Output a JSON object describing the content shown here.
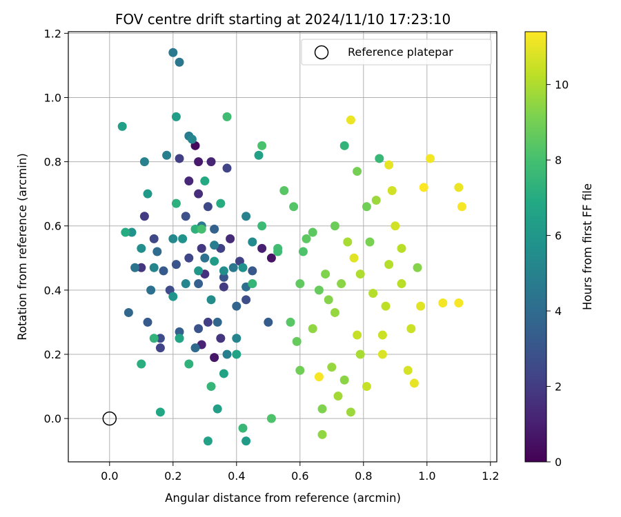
{
  "chart_data": {
    "type": "scatter",
    "title": "FOV centre drift starting at 2024/11/10 17:23:10",
    "xlabel": "Angular distance from reference (arcmin)",
    "ylabel": "Rotation from reference (arcmin)",
    "xlim": [
      -0.13,
      1.22
    ],
    "ylim": [
      -0.135,
      1.205
    ],
    "x_ticks": [
      "0.0",
      "0.2",
      "0.4",
      "0.6",
      "0.8",
      "1.0",
      "1.2"
    ],
    "y_ticks": [
      "0.0",
      "0.2",
      "0.4",
      "0.6",
      "0.8",
      "1.0",
      "1.2"
    ],
    "grid": true,
    "legend_position": "top-right",
    "legend": {
      "label": "Reference platepar"
    },
    "reference_point": {
      "x": 0.0,
      "y": 0.0
    },
    "colorbar": {
      "label": "Hours from first FF file",
      "min": 0,
      "max": 11.4,
      "ticks": [
        "0",
        "2",
        "4",
        "6",
        "8",
        "10"
      ],
      "colormap": "viridis"
    },
    "series": [
      {
        "color_value": "hours",
        "points": [
          [
            0.27,
            0.85,
            0.3
          ],
          [
            0.51,
            0.5,
            0.6
          ],
          [
            0.33,
            0.19,
            0.7
          ],
          [
            0.28,
            0.8,
            0.8
          ],
          [
            0.48,
            0.53,
            1.0
          ],
          [
            0.29,
            0.23,
            1.1
          ],
          [
            0.32,
            0.8,
            1.2
          ],
          [
            0.25,
            0.74,
            1.3
          ],
          [
            0.38,
            0.56,
            1.4
          ],
          [
            0.28,
            0.7,
            1.5
          ],
          [
            0.1,
            0.47,
            1.8
          ],
          [
            0.3,
            0.45,
            1.6
          ],
          [
            0.35,
            0.25,
            1.7
          ],
          [
            0.11,
            0.63,
            2.0
          ],
          [
            0.22,
            0.81,
            2.1
          ],
          [
            0.41,
            0.49,
            2.2
          ],
          [
            0.37,
            0.78,
            2.3
          ],
          [
            0.29,
            0.53,
            1.9
          ],
          [
            0.25,
            0.5,
            2.4
          ],
          [
            0.14,
            0.56,
            2.5
          ],
          [
            0.36,
            0.41,
            2.0
          ],
          [
            0.31,
            0.3,
            2.1
          ],
          [
            0.16,
            0.22,
            2.3
          ],
          [
            0.19,
            0.4,
            2.6
          ],
          [
            0.43,
            0.37,
            2.7
          ],
          [
            0.24,
            0.63,
            2.8
          ],
          [
            0.35,
            0.53,
            2.2
          ],
          [
            0.28,
            0.28,
            2.9
          ],
          [
            0.21,
            0.48,
            3.0
          ],
          [
            0.45,
            0.46,
            3.1
          ],
          [
            0.12,
            0.3,
            3.2
          ],
          [
            0.31,
            0.66,
            2.5
          ],
          [
            0.16,
            0.25,
            2.6
          ],
          [
            0.5,
            0.3,
            3.3
          ],
          [
            0.36,
            0.44,
            3.0
          ],
          [
            0.22,
            0.27,
            3.4
          ],
          [
            0.28,
            0.42,
            3.5
          ],
          [
            0.33,
            0.59,
            3.6
          ],
          [
            0.17,
            0.46,
            3.2
          ],
          [
            0.4,
            0.35,
            3.7
          ],
          [
            0.06,
            0.33,
            3.8
          ],
          [
            0.27,
            0.22,
            3.9
          ],
          [
            0.15,
            0.52,
            4.0
          ],
          [
            0.22,
            0.25,
            4.1
          ],
          [
            0.34,
            0.3,
            3.8
          ],
          [
            0.13,
            0.4,
            4.2
          ],
          [
            0.3,
            0.5,
            4.3
          ],
          [
            0.43,
            0.41,
            4.1
          ],
          [
            0.08,
            0.47,
            4.4
          ],
          [
            0.39,
            0.47,
            4.5
          ],
          [
            0.2,
            1.14,
            4.6
          ],
          [
            0.22,
            1.11,
            4.5
          ],
          [
            0.25,
            0.88,
            4.7
          ],
          [
            0.33,
            0.54,
            4.8
          ],
          [
            0.29,
            0.6,
            4.6
          ],
          [
            0.18,
            0.82,
            4.9
          ],
          [
            0.11,
            0.8,
            5.0
          ],
          [
            0.37,
            0.2,
            4.9
          ],
          [
            0.43,
            0.63,
            5.0
          ],
          [
            0.14,
            0.47,
            5.1
          ],
          [
            0.26,
            0.87,
            5.2
          ],
          [
            0.2,
            0.56,
            5.3
          ],
          [
            0.4,
            0.25,
            5.1
          ],
          [
            0.45,
            0.55,
            5.4
          ],
          [
            0.32,
            0.37,
            5.5
          ],
          [
            0.24,
            0.42,
            5.2
          ],
          [
            0.1,
            0.53,
            5.6
          ],
          [
            0.42,
            0.47,
            5.7
          ],
          [
            0.07,
            0.58,
            5.8
          ],
          [
            0.36,
            0.46,
            5.5
          ],
          [
            0.2,
            0.38,
            5.9
          ],
          [
            0.28,
            0.46,
            6.0
          ],
          [
            0.12,
            0.7,
            6.1
          ],
          [
            0.33,
            0.49,
            6.2
          ],
          [
            0.23,
            0.56,
            5.8
          ],
          [
            0.21,
            0.94,
            6.3
          ],
          [
            0.04,
            0.91,
            6.4
          ],
          [
            0.31,
            -0.07,
            6.5
          ],
          [
            0.43,
            -0.07,
            6.2
          ],
          [
            0.34,
            0.03,
            6.4
          ],
          [
            0.4,
            0.2,
            6.6
          ],
          [
            0.22,
            0.25,
            6.7
          ],
          [
            0.16,
            0.02,
            6.8
          ],
          [
            0.36,
            0.14,
            6.6
          ],
          [
            0.3,
            0.74,
            6.9
          ],
          [
            0.47,
            0.82,
            6.5
          ],
          [
            0.05,
            0.58,
            7.0
          ],
          [
            0.1,
            0.17,
            7.1
          ],
          [
            0.21,
            0.67,
            7.2
          ],
          [
            0.35,
            0.67,
            7.0
          ],
          [
            0.27,
            0.59,
            7.3
          ],
          [
            0.14,
            0.25,
            7.4
          ],
          [
            0.32,
            0.1,
            7.5
          ],
          [
            0.42,
            -0.03,
            7.6
          ],
          [
            0.25,
            0.17,
            7.3
          ],
          [
            0.48,
            0.6,
            7.7
          ],
          [
            0.37,
            0.94,
            7.8
          ],
          [
            0.45,
            0.42,
            7.5
          ],
          [
            0.53,
            0.53,
            7.9
          ],
          [
            0.29,
            0.59,
            8.0
          ],
          [
            0.48,
            0.85,
            8.1
          ],
          [
            0.53,
            0.52,
            7.8
          ],
          [
            0.51,
            0.0,
            8.2
          ],
          [
            0.58,
            0.66,
            8.3
          ],
          [
            0.55,
            0.71,
            8.4
          ],
          [
            0.61,
            0.52,
            8.2
          ],
          [
            0.64,
            0.58,
            8.5
          ],
          [
            0.6,
            0.42,
            8.6
          ],
          [
            0.57,
            0.3,
            8.4
          ],
          [
            0.66,
            0.4,
            8.7
          ],
          [
            0.71,
            0.6,
            8.8
          ],
          [
            0.74,
            0.85,
            7.4
          ],
          [
            0.85,
            0.81,
            7.6
          ],
          [
            0.81,
            0.66,
            8.9
          ],
          [
            0.78,
            0.77,
            9.0
          ],
          [
            0.82,
            0.55,
            9.1
          ],
          [
            0.6,
            0.15,
            8.9
          ],
          [
            0.67,
            0.03,
            9.2
          ],
          [
            0.69,
            0.37,
            9.3
          ],
          [
            0.73,
            0.42,
            9.4
          ],
          [
            0.64,
            0.28,
            9.5
          ],
          [
            0.7,
            0.16,
            9.6
          ],
          [
            0.76,
            0.02,
            9.7
          ],
          [
            0.67,
            -0.05,
            9.5
          ],
          [
            0.72,
            0.07,
            9.8
          ],
          [
            0.75,
            0.55,
            9.9
          ],
          [
            0.79,
            0.45,
            10.0
          ],
          [
            0.84,
            0.68,
            9.7
          ],
          [
            0.88,
            0.48,
            10.1
          ],
          [
            0.92,
            0.53,
            10.2
          ],
          [
            0.87,
            0.35,
            10.3
          ],
          [
            0.81,
            0.1,
            10.4
          ],
          [
            0.95,
            0.28,
            10.5
          ],
          [
            0.9,
            0.6,
            10.6
          ],
          [
            0.94,
            0.15,
            10.7
          ],
          [
            0.78,
            0.26,
            10.4
          ],
          [
            0.86,
            0.2,
            10.8
          ],
          [
            0.98,
            0.35,
            10.9
          ],
          [
            0.89,
            0.71,
            10.6
          ],
          [
            0.96,
            0.11,
            11.0
          ],
          [
            0.76,
            0.93,
            11.1
          ],
          [
            0.88,
            0.79,
            11.0
          ],
          [
            1.01,
            0.81,
            11.2
          ],
          [
            1.1,
            0.72,
            11.1
          ],
          [
            1.11,
            0.66,
            11.3
          ],
          [
            1.05,
            0.36,
            11.2
          ],
          [
            1.1,
            0.36,
            11.3
          ],
          [
            0.99,
            0.72,
            11.4
          ],
          [
            0.66,
            0.13,
            11.3
          ],
          [
            0.77,
            0.5,
            10.9
          ],
          [
            0.62,
            0.56,
            8.5
          ],
          [
            0.68,
            0.45,
            9.2
          ],
          [
            0.71,
            0.33,
            9.6
          ],
          [
            0.83,
            0.39,
            10.1
          ],
          [
            0.92,
            0.42,
            10.2
          ],
          [
            0.97,
            0.47,
            9.3
          ],
          [
            0.59,
            0.24,
            8.7
          ],
          [
            0.79,
            0.2,
            9.9
          ],
          [
            0.74,
            0.12,
            9.4
          ],
          [
            0.86,
            0.26,
            10.5
          ]
        ]
      }
    ]
  }
}
